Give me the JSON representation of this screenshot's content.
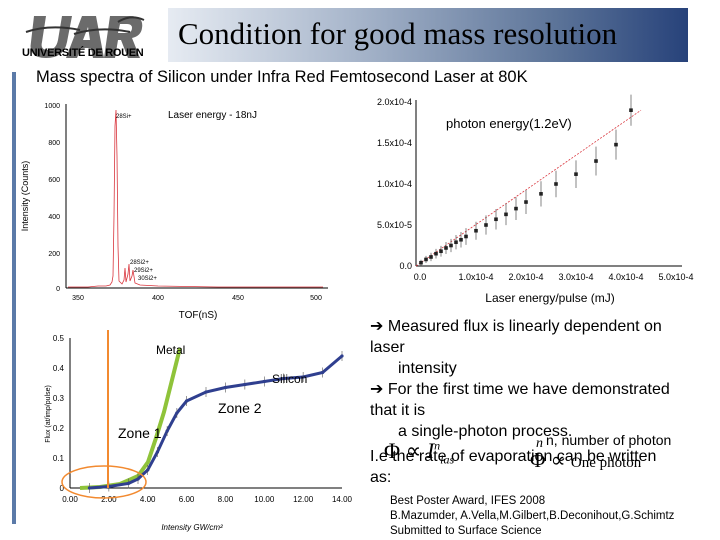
{
  "logo": {
    "brand_text": "UNIVERSITÉ DE ROUEN"
  },
  "title": "Condition for good mass resolution",
  "subtitle": "Mass spectra of Silicon under Infra Red Femtosecond Laser at 80K",
  "colors": {
    "title_band_start": "#e6ebf2",
    "title_band_end": "#27427a",
    "accent_bar": "#5b7aa8",
    "fit_green": "#8fc33a",
    "data_blue": "#2f3f8f",
    "arrow_orange": "#f28a30"
  },
  "charts": {
    "spectrum": {
      "annotation": "Laser energy - 18nJ",
      "xlabel": "TOF(nS)",
      "ylabel": "Intensity (Counts)",
      "x_ticks": [
        "350",
        "400",
        "450",
        "500"
      ],
      "y_ticks": [
        "1000",
        "800",
        "600",
        "400",
        "200",
        "0"
      ],
      "peak_labels": [
        "28Si+",
        "28Si2+",
        "29Si2+",
        "30Si2+"
      ]
    },
    "flux_vs_energy": {
      "annotation": "photon energy(1.2eV)",
      "xlabel": "Laser energy/pulse (mJ)",
      "y_ticks": [
        "2.0x10-4",
        "1.5x10-4",
        "1.0x10-4",
        "5.0x10-5",
        "0.0"
      ],
      "x_ticks": [
        "0.0",
        "1.0x10-4",
        "2.0x10-4",
        "3.0x10-4",
        "4.0x10-4",
        "5.0x10-4"
      ]
    },
    "flux_vs_intensity": {
      "ylabel": "Flux (at/imp/pulse)",
      "xlabel": "Intensity GW/cm²",
      "x_ticks": [
        "0.00",
        "2.00",
        "4.00",
        "6.00",
        "8.00",
        "10.00",
        "12.00",
        "14.00"
      ],
      "y_ticks": [
        "0.5",
        "0.4",
        "0.3",
        "0.2",
        "0.1",
        "0"
      ],
      "label_metal": "Metal",
      "label_silicon": "Silicon",
      "label_zone1": "Zone 1",
      "label_zone2": "Zone 2"
    }
  },
  "chart_data": [
    {
      "type": "line",
      "title": "",
      "xlabel": "Laser energy/pulse (mJ)",
      "ylabel": "",
      "xlim": [
        0,
        0.0005
      ],
      "ylim": [
        0,
        0.0002
      ],
      "x": [
        1e-05,
        2e-05,
        3e-05,
        4e-05,
        5e-05,
        6e-05,
        7e-05,
        8e-05,
        9e-05,
        0.0001,
        0.00012,
        0.00014,
        0.00016,
        0.00018,
        0.0002,
        0.00022,
        0.00025,
        0.00028,
        0.00032,
        0.00036,
        0.0004,
        0.00043
      ],
      "series": [
        {
          "values": [
            4e-06,
            8e-06,
            1.1e-05,
            1.5e-05,
            1.8e-05,
            2.2e-05,
            2.5e-05,
            2.9e-05,
            3.2e-05,
            3.6e-05,
            4.3e-05,
            5e-05,
            5.7e-05,
            6.3e-05,
            7e-05,
            7.8e-05,
            8.8e-05,
            0.0001,
            0.000112,
            0.000128,
            0.000148,
            0.00019
          ]
        }
      ]
    },
    {
      "type": "line",
      "title": "",
      "xlabel": "Intensity GW/cm²",
      "ylabel": "Flux (at/imp/pulse)",
      "xlim": [
        0,
        14
      ],
      "ylim": [
        0,
        0.5
      ],
      "x": [
        1.0,
        2.0,
        3.0,
        3.5,
        4.0,
        4.5,
        5.0,
        5.5,
        6.0,
        7.0,
        8.0,
        9.0,
        10.0,
        11.0,
        12.0,
        13.0,
        14.0
      ],
      "series": [
        {
          "name": "Silicon",
          "values": [
            0.0,
            0.005,
            0.015,
            0.03,
            0.06,
            0.12,
            0.19,
            0.25,
            0.29,
            0.32,
            0.335,
            0.345,
            0.355,
            0.365,
            0.37,
            0.385,
            0.44
          ]
        }
      ]
    }
  ],
  "text": {
    "bullet1_line1": "Measured flux is linearly dependent on",
    "bullet1_line2": "laser",
    "bullet1_line3": "intensity",
    "bullet2_line1": "For the first time we have demonstrated",
    "bullet2_line2": "that it is",
    "bullet2_line3": "a single-photon process.",
    "n_note": "n, number of photon",
    "ie_line": "I.e the rate of evaporation can be written",
    "as_line": "as:",
    "formula1_lhs": "Φ",
    "formula1_mid": "∝",
    "formula1_rhs": "I",
    "formula1_sub": "las",
    "formula1_sup": "n",
    "formula2_lhs": "Φ",
    "formula2_mid": "∝",
    "formula2_rhs": "One photon",
    "award": "Best Poster Award, IFES 2008",
    "authors": "B.Mazumder, A.Vella,M.Gilbert,B.Deconihout,G.Schimtz",
    "submitted": "Submitted to Surface Science"
  }
}
